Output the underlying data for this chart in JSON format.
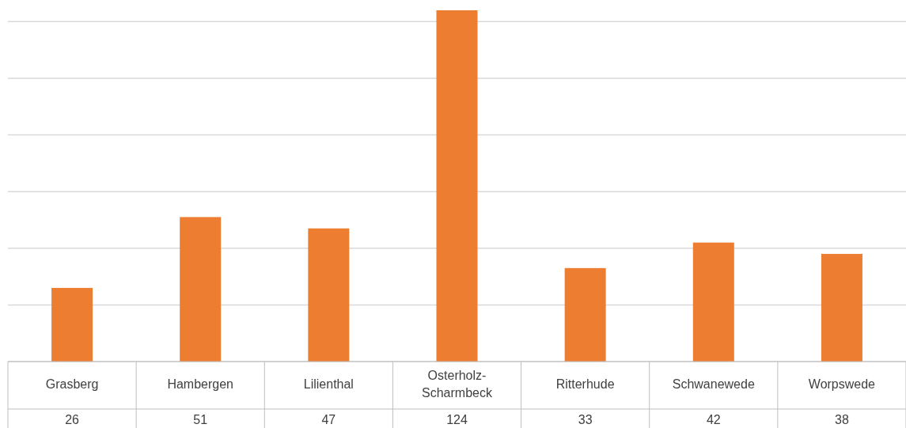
{
  "chart_data": {
    "type": "bar",
    "categories": [
      "Grasberg",
      "Hambergen",
      "Lilienthal",
      "Osterholz-Scharmbeck",
      "Ritterhude",
      "Schwanewede",
      "Worpswede"
    ],
    "values": [
      26,
      51,
      47,
      124,
      33,
      42,
      38
    ],
    "color": "#ed7d31",
    "ylim": [
      0,
      124
    ],
    "yticks": [
      {
        "value": 0,
        "label": null
      },
      {
        "value": 20,
        "label": null
      },
      {
        "value": 40,
        "label": null
      },
      {
        "value": 60,
        "label": null
      },
      {
        "value": 80,
        "label": null
      },
      {
        "value": 100,
        "label": null
      },
      {
        "value": 120,
        "label": null
      }
    ],
    "grid": "y",
    "data_labels": true,
    "tick_labels": "x"
  }
}
